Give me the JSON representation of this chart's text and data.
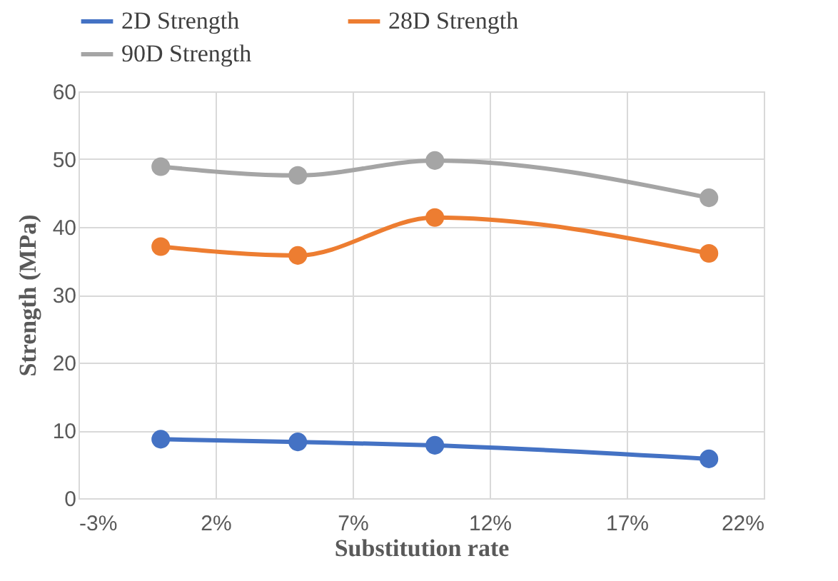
{
  "chart_data": {
    "type": "line",
    "xlabel": "Substitution rate",
    "ylabel": "Strength (MPa)",
    "x": [
      0,
      5,
      10,
      20
    ],
    "series": [
      {
        "name": "2D Strength",
        "color": "#4472c4",
        "values": [
          8.7,
          8.3,
          7.8,
          5.8
        ]
      },
      {
        "name": "28D Strength",
        "color": "#ed7d31",
        "values": [
          37.1,
          35.8,
          41.4,
          36.1
        ]
      },
      {
        "name": "90D Strength",
        "color": "#a5a5a5",
        "values": [
          48.9,
          47.6,
          49.8,
          44.3
        ]
      }
    ],
    "xlim": [
      -3,
      22
    ],
    "xticks": [
      {
        "value": -3,
        "label": "-3%"
      },
      {
        "value": 2,
        "label": "2%"
      },
      {
        "value": 7,
        "label": "7%"
      },
      {
        "value": 12,
        "label": "12%"
      },
      {
        "value": 17,
        "label": "17%"
      },
      {
        "value": 22,
        "label": "22%"
      }
    ],
    "ylim": [
      0,
      60
    ],
    "yticks": [
      0,
      10,
      20,
      30,
      40,
      50,
      60
    ],
    "grid": true,
    "legend": "top",
    "marker": "circle",
    "line_style": "solid"
  }
}
